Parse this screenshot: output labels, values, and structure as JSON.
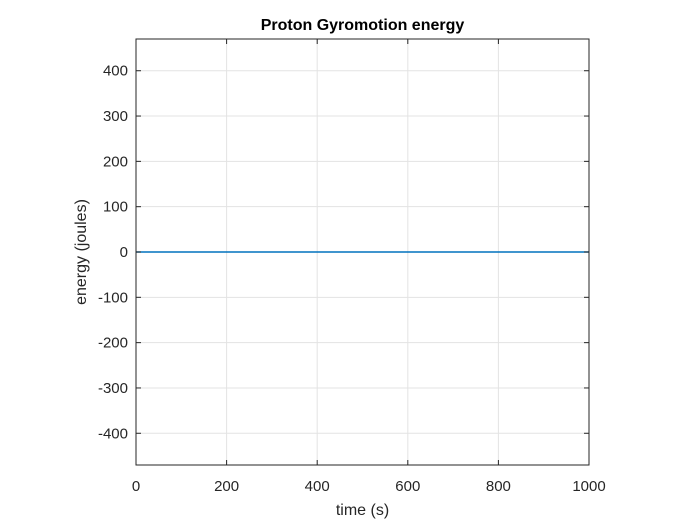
{
  "chart_data": {
    "type": "line",
    "title": "Proton Gyromotion energy",
    "xlabel": "time (s)",
    "ylabel": "energy (joules)",
    "xlim": [
      0,
      1000
    ],
    "ylim": [
      -470,
      470
    ],
    "xticks": [
      0,
      200,
      400,
      600,
      800,
      1000
    ],
    "yticks": [
      -400,
      -300,
      -200,
      -100,
      0,
      100,
      200,
      300,
      400
    ],
    "xtick_labels": [
      "0",
      "200",
      "400",
      "600",
      "800",
      "1000"
    ],
    "ytick_labels": [
      "-400",
      "-300",
      "-200",
      "-100",
      "0",
      "100",
      "200",
      "300",
      "400"
    ],
    "grid": true,
    "series": [
      {
        "color": "#0072BD",
        "x": [
          0,
          1000
        ],
        "y": [
          0,
          0
        ]
      }
    ]
  }
}
